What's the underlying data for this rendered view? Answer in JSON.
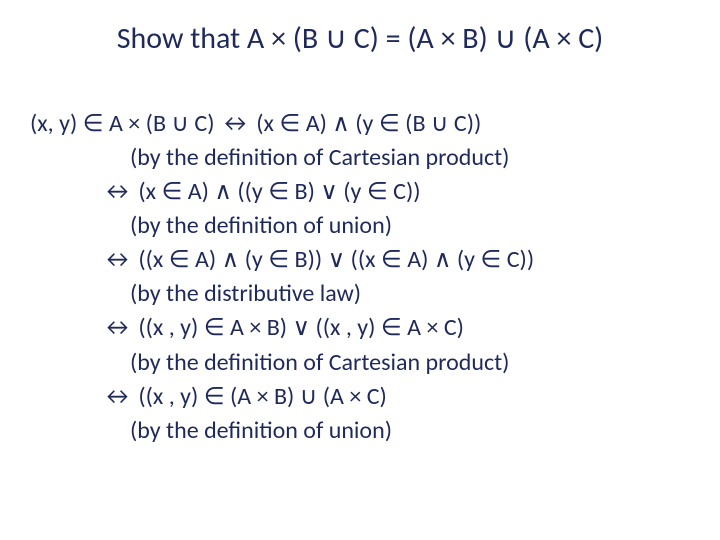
{
  "colors": {
    "text": "#1f2a5a",
    "background": "#ffffff"
  },
  "typography": {
    "title_fontsize": 30,
    "body_fontsize": 24,
    "font_family": "Calibri"
  },
  "title": "Show that A × (B ∪ C) = (A × B) ∪ (A × C)",
  "proof": {
    "line1": "(x, y) ∈ A × (B ∪ C) ↔ (x ∈ A) ∧ (y ∈ (B ∪ C))",
    "reason1": "(by the definition of Cartesian product)",
    "step2": "↔ (x ∈ A) ∧ ((y ∈ B) ∨ (y ∈ C))",
    "reason2": "(by the definition of union)",
    "step3": "↔ ((x ∈ A) ∧ (y ∈ B)) ∨ ((x ∈ A) ∧ (y ∈ C))",
    "reason3": "(by the distributive law)",
    "step4": "↔ ((x , y) ∈ A × B) ∨ ((x , y) ∈ A × C)",
    "reason4": "(by the definition of Cartesian product)",
    "step5": "↔ ((x , y) ∈ (A × B) ∪ (A × C)",
    "reason5": "(by the definition of union)"
  }
}
